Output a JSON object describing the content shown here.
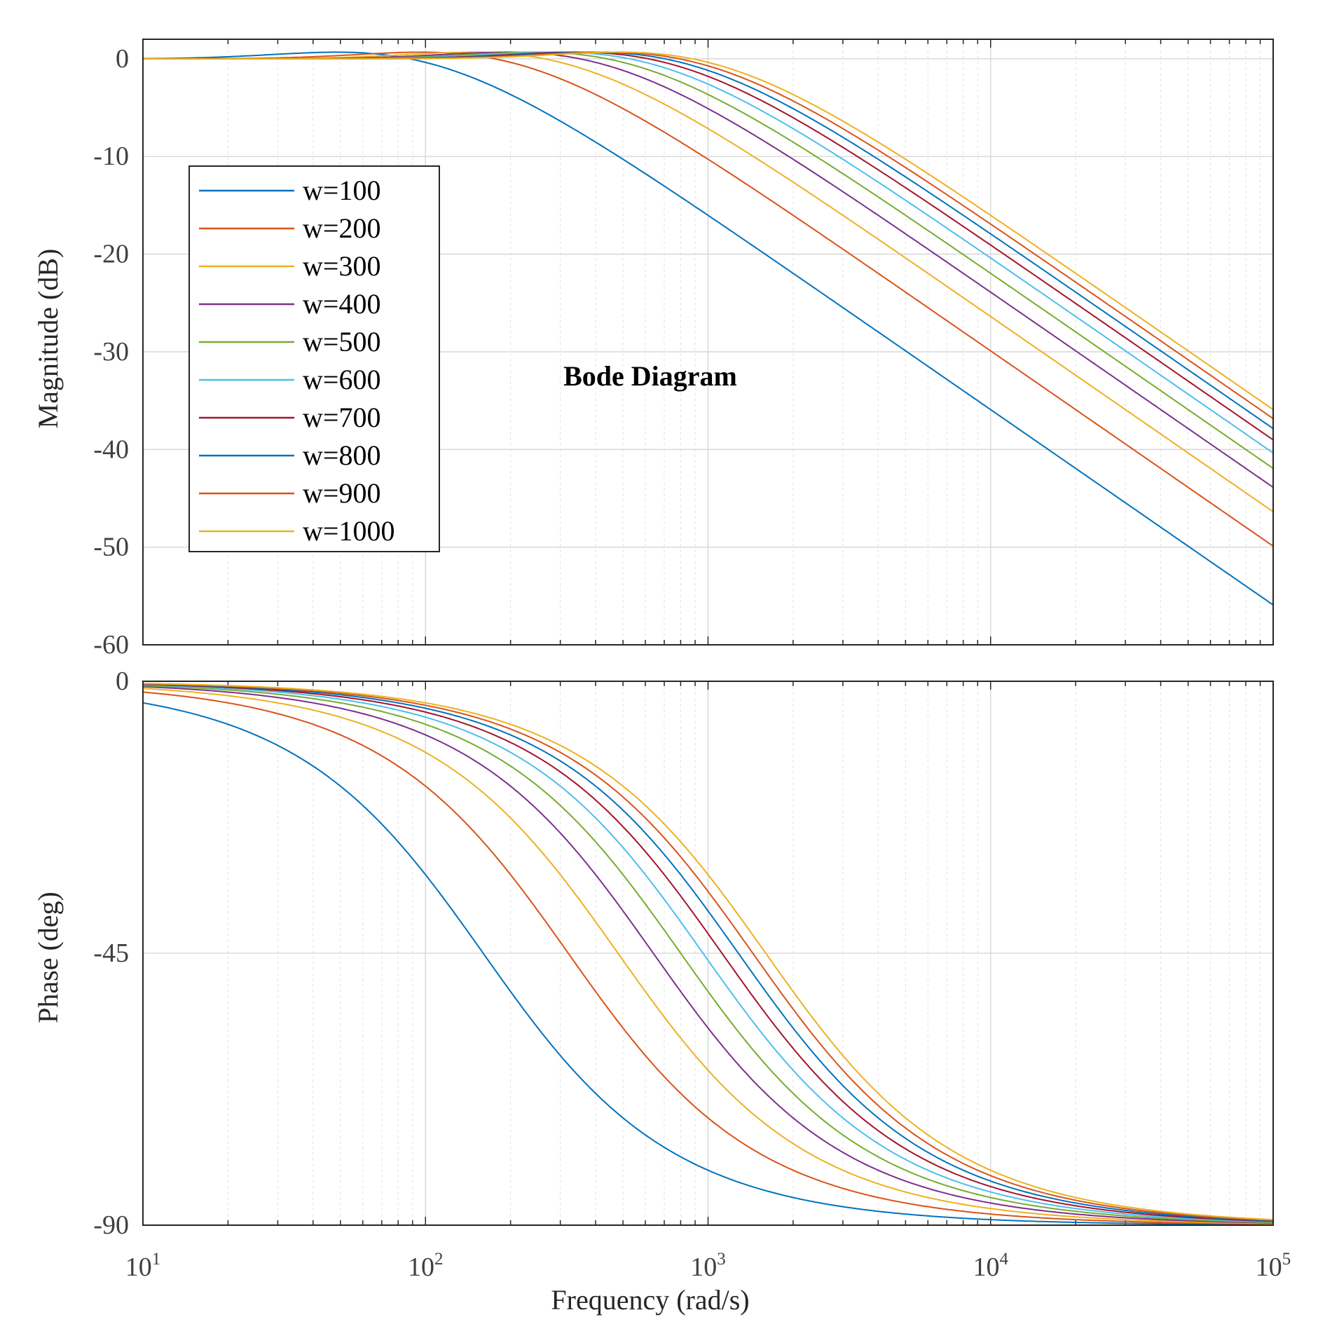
{
  "chart_data": {
    "type": "line",
    "title": "Bode Diagram",
    "xlabel": "Frequency  (rad/s)",
    "xscale": "log",
    "xlim": [
      10,
      100000
    ],
    "x_ticks": [
      {
        "base": "10",
        "exp": "1"
      },
      {
        "base": "10",
        "exp": "2"
      },
      {
        "base": "10",
        "exp": "3"
      },
      {
        "base": "10",
        "exp": "4"
      },
      {
        "base": "10",
        "exp": "5"
      }
    ],
    "legend_position": "upper-left of magnitude plot",
    "series": [
      {
        "name": "w=100",
        "color": "#0072BD",
        "w": 100
      },
      {
        "name": "w=200",
        "color": "#D95319",
        "w": 200
      },
      {
        "name": "w=300",
        "color": "#EDB120",
        "w": 300
      },
      {
        "name": "w=400",
        "color": "#7E2F8E",
        "w": 400
      },
      {
        "name": "w=500",
        "color": "#77AC30",
        "w": 500
      },
      {
        "name": "w=600",
        "color": "#4DBEEE",
        "w": 600
      },
      {
        "name": "w=700",
        "color": "#A2142F",
        "w": 700
      },
      {
        "name": "w=800",
        "color": "#0072BD",
        "w": 800
      },
      {
        "name": "w=900",
        "color": "#D95319",
        "w": 900
      },
      {
        "name": "w=1000",
        "color": "#EDB120",
        "w": 1000
      }
    ],
    "magnitude_plot": {
      "ylabel": "Magnitude (dB)",
      "ylim": [
        -60,
        2
      ],
      "y_ticks": [
        "0",
        "-10",
        "-20",
        "-30",
        "-40",
        "-50",
        "-60"
      ],
      "y_tick_values": [
        0,
        -10,
        -20,
        -30,
        -40,
        -50,
        -60
      ],
      "values_at_1e5_dB": [
        -54,
        -48,
        -44.5,
        -42,
        -40,
        -38.5,
        -37,
        -36,
        -35,
        -34
      ]
    },
    "phase_plot": {
      "ylabel": "Phase (deg)",
      "ylim": [
        -90,
        0
      ],
      "y_ticks": [
        "0",
        "-45",
        "-90"
      ],
      "y_tick_values": [
        0,
        -45,
        -90
      ],
      "corner_frequency_note": "-45 deg crossing near 1.6*w rad/s"
    }
  }
}
